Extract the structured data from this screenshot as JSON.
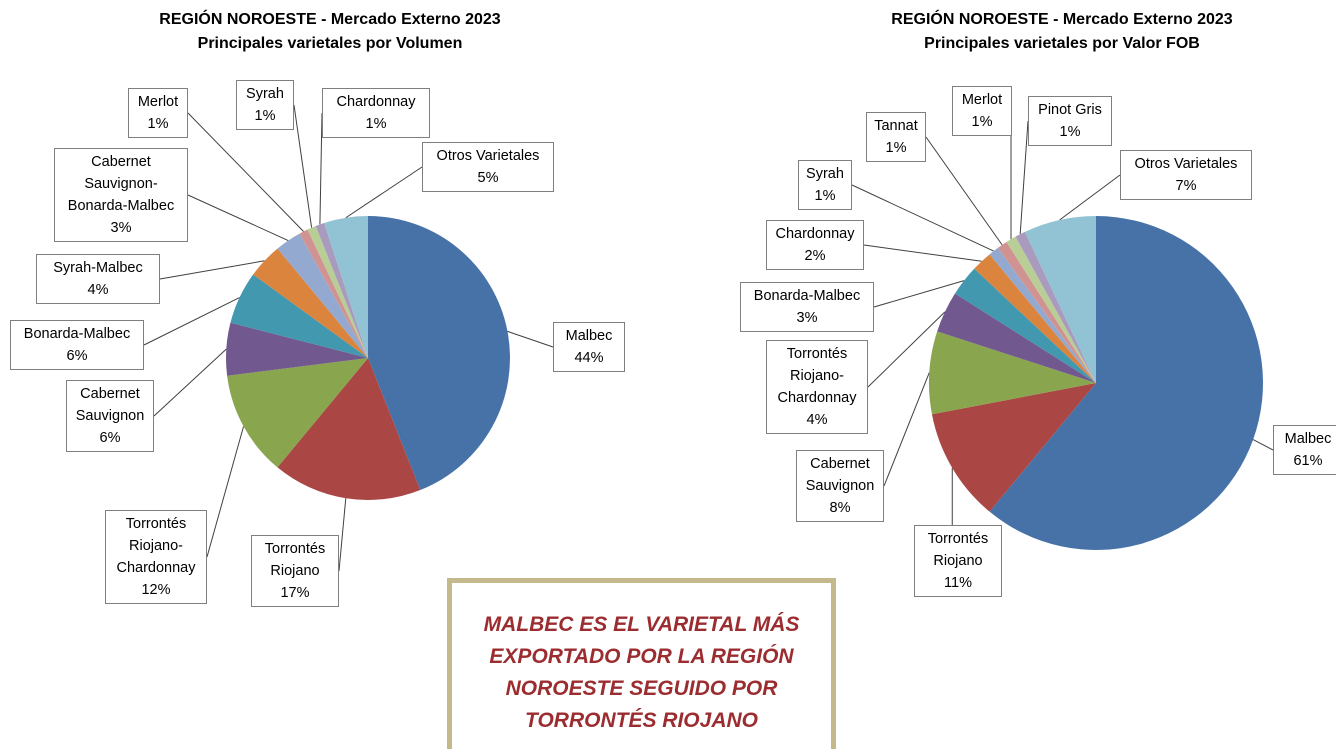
{
  "chart_data": [
    {
      "type": "pie",
      "title": "REGIÓN NOROESTE - Mercado Externo 2023",
      "subtitle": "Principales varietales por Volumen",
      "categories": [
        "Malbec",
        "Torrontés Riojano",
        "Torrontés Riojano-Chardonnay",
        "Cabernet Sauvignon",
        "Bonarda-Malbec",
        "Syrah-Malbec",
        "Cabernet Sauvignon-Bonarda-Malbec",
        "Merlot",
        "Syrah",
        "Chardonnay",
        "Otros Varietales"
      ],
      "values": [
        44,
        17,
        12,
        6,
        6,
        4,
        3,
        1,
        1,
        1,
        5
      ],
      "value_labels": [
        "44%",
        "17%",
        "12%",
        "6%",
        "6%",
        "4%",
        "3%",
        "1%",
        "1%",
        "1%",
        "5%"
      ],
      "colors": [
        "#4672a8",
        "#aa4643",
        "#89a54e",
        "#71588f",
        "#4198af",
        "#db843d",
        "#93a9cf",
        "#d19392",
        "#b9cd96",
        "#a99bbd",
        "#92c3d4"
      ]
    },
    {
      "type": "pie",
      "title": "REGIÓN NOROESTE - Mercado Externo 2023",
      "subtitle": "Principales varietales por Valor FOB",
      "categories": [
        "Malbec",
        "Torrontés Riojano",
        "Cabernet Sauvignon",
        "Torrontés Riojano-Chardonnay",
        "Bonarda-Malbec",
        "Chardonnay",
        "Syrah",
        "Tannat",
        "Merlot",
        "Pinot Gris",
        "Otros Varietales"
      ],
      "values": [
        61,
        11,
        8,
        4,
        3,
        2,
        1,
        1,
        1,
        1,
        7
      ],
      "value_labels": [
        "61%",
        "11%",
        "8%",
        "4%",
        "3%",
        "2%",
        "1%",
        "1%",
        "1%",
        "1%",
        "7%"
      ],
      "colors": [
        "#4672a8",
        "#aa4643",
        "#89a54e",
        "#71588f",
        "#4198af",
        "#db843d",
        "#93a9cf",
        "#d19392",
        "#b9cd96",
        "#a99bbd",
        "#92c3d4"
      ]
    }
  ],
  "annotation": "MALBEC ES EL VARIETAL MÁS EXPORTADO POR LA REGIÓN NOROESTE SEGUIDO POR TORRONTÉS RIOJANO"
}
